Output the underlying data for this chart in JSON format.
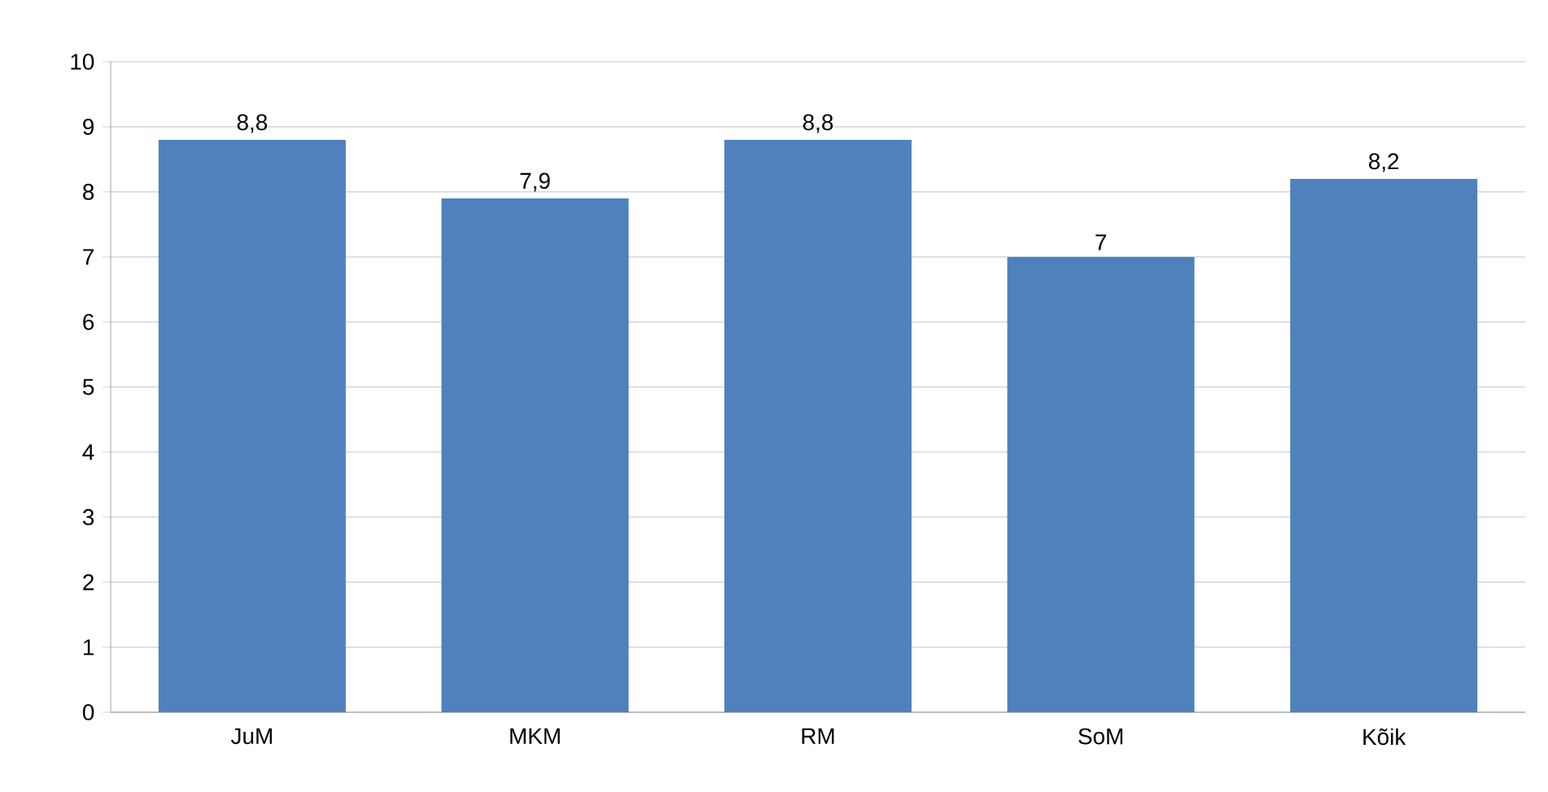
{
  "chart_data": {
    "type": "bar",
    "categories": [
      "JuM",
      "MKM",
      "RM",
      "SoM",
      "Kõik"
    ],
    "values": [
      8.8,
      7.9,
      8.8,
      7,
      8.2
    ],
    "value_labels": [
      "8,8",
      "7,9",
      "8,8",
      "7",
      "8,2"
    ],
    "color": "#4f81bd",
    "ylim": [
      0,
      10
    ],
    "yticks": [
      0,
      1,
      2,
      3,
      4,
      5,
      6,
      7,
      8,
      9,
      10
    ],
    "grid": "y"
  }
}
